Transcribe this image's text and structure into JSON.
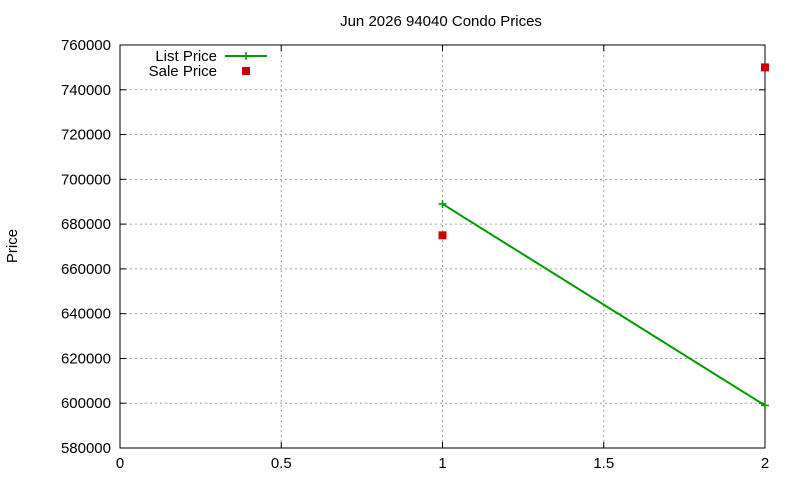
{
  "chart_data": {
    "type": "line",
    "title": "Jun 2026 94040 Condo Prices",
    "xlabel": "",
    "ylabel": "Price",
    "xlim": [
      0,
      2
    ],
    "ylim": [
      580000,
      760000
    ],
    "x_ticks": [
      0,
      0.5,
      1,
      1.5,
      2
    ],
    "x_tick_labels": [
      "0",
      "0.5",
      "1",
      "1.5",
      "2"
    ],
    "y_ticks": [
      580000,
      600000,
      620000,
      640000,
      660000,
      680000,
      700000,
      720000,
      740000,
      760000
    ],
    "y_tick_labels": [
      "580000",
      "600000",
      "620000",
      "640000",
      "660000",
      "680000",
      "700000",
      "720000",
      "740000",
      "760000"
    ],
    "grid": true,
    "legend_position": "top-left",
    "series": [
      {
        "name": "List Price",
        "style": "line-with-plus-markers",
        "color": "#009900",
        "x": [
          1,
          2
        ],
        "y": [
          689000,
          599000
        ]
      },
      {
        "name": "Sale Price",
        "style": "square-markers",
        "color": "#cc0000",
        "x": [
          1,
          2
        ],
        "y": [
          675000,
          750000
        ]
      }
    ]
  }
}
